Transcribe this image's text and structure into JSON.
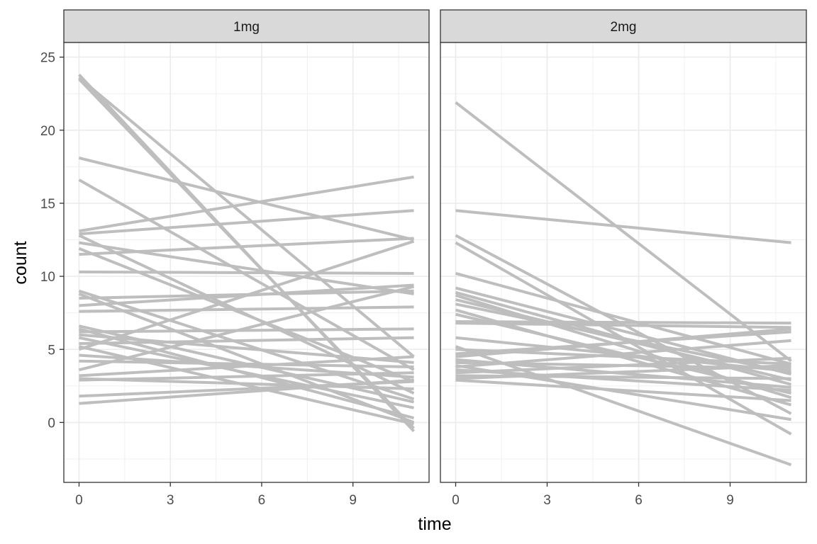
{
  "chart_data": {
    "type": "line",
    "xlabel": "time",
    "ylabel": "count",
    "xlim": [
      -0.5,
      11.5
    ],
    "ylim": [
      -4.1,
      26
    ],
    "x_ticks": [
      0,
      3,
      6,
      9
    ],
    "y_ticks": [
      0,
      5,
      10,
      15,
      20,
      25
    ],
    "grid": true,
    "line_color": "#bebebe",
    "panels": [
      {
        "label": "1mg",
        "x_start": 0,
        "x_end": 11,
        "segments": [
          [
            23.8,
            -0.6
          ],
          [
            23.5,
            -0.4
          ],
          [
            23.6,
            4.5
          ],
          [
            18.1,
            12.5
          ],
          [
            16.6,
            3.6
          ],
          [
            13.1,
            16.8
          ],
          [
            12.9,
            14.5
          ],
          [
            12.8,
            2.0
          ],
          [
            12.3,
            8.8
          ],
          [
            11.9,
            2.8
          ],
          [
            11.5,
            12.6
          ],
          [
            10.3,
            10.2
          ],
          [
            9.0,
            1.6
          ],
          [
            8.8,
            0.0
          ],
          [
            8.5,
            9.0
          ],
          [
            8.0,
            9.4
          ],
          [
            7.6,
            7.9
          ],
          [
            6.6,
            1.4
          ],
          [
            6.4,
            0.3
          ],
          [
            6.2,
            6.4
          ],
          [
            6.0,
            4.1
          ],
          [
            5.8,
            1.0
          ],
          [
            5.4,
            5.8
          ],
          [
            5.2,
            -0.1
          ],
          [
            5.0,
            12.4
          ],
          [
            4.6,
            3.1
          ],
          [
            4.2,
            3.8
          ],
          [
            3.6,
            9.3
          ],
          [
            3.2,
            4.5
          ],
          [
            3.0,
            2.3
          ],
          [
            2.9,
            3.4
          ],
          [
            1.8,
            2.8
          ],
          [
            1.3,
            2.9
          ]
        ]
      },
      {
        "label": "2mg",
        "x_start": 0,
        "x_end": 11,
        "segments": [
          [
            21.9,
            4.2
          ],
          [
            14.5,
            12.3
          ],
          [
            12.8,
            0.6
          ],
          [
            12.3,
            -0.8
          ],
          [
            10.2,
            4.0
          ],
          [
            9.2,
            3.3
          ],
          [
            8.9,
            2.6
          ],
          [
            8.7,
            1.7
          ],
          [
            8.4,
            2.9
          ],
          [
            8.1,
            3.4
          ],
          [
            7.7,
            1.2
          ],
          [
            7.4,
            2.0
          ],
          [
            6.9,
            6.8
          ],
          [
            6.8,
            6.5
          ],
          [
            5.8,
            3.5
          ],
          [
            5.2,
            -2.9
          ],
          [
            5.0,
            4.0
          ],
          [
            4.7,
            6.2
          ],
          [
            4.5,
            6.4
          ],
          [
            4.3,
            2.4
          ],
          [
            4.1,
            3.7
          ],
          [
            3.9,
            0.2
          ],
          [
            3.8,
            5.6
          ],
          [
            3.6,
            2.2
          ],
          [
            3.4,
            4.4
          ],
          [
            3.2,
            3.0
          ],
          [
            3.0,
            3.9
          ],
          [
            2.9,
            1.5
          ]
        ]
      }
    ]
  }
}
